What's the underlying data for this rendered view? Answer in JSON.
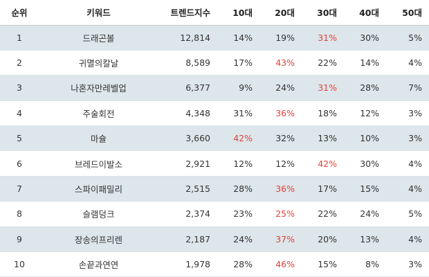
{
  "table": {
    "headers": [
      "순위",
      "키워드",
      "트렌드지수",
      "10대",
      "20대",
      "30대",
      "40대",
      "50대"
    ],
    "rows": [
      {
        "rank": "1",
        "keyword": "드래곤볼",
        "trend": "12,814",
        "ages": [
          "14%",
          "19%",
          "31%",
          "30%",
          "5%"
        ],
        "highlight": 2
      },
      {
        "rank": "2",
        "keyword": "귀멸의칼날",
        "trend": "8,589",
        "ages": [
          "17%",
          "43%",
          "22%",
          "14%",
          "4%"
        ],
        "highlight": 1
      },
      {
        "rank": "3",
        "keyword": "나혼자만레벨업",
        "trend": "6,377",
        "ages": [
          "9%",
          "24%",
          "31%",
          "28%",
          "7%"
        ],
        "highlight": 2
      },
      {
        "rank": "4",
        "keyword": "주술회전",
        "trend": "4,348",
        "ages": [
          "31%",
          "36%",
          "18%",
          "12%",
          "3%"
        ],
        "highlight": 1
      },
      {
        "rank": "5",
        "keyword": "마슐",
        "trend": "3,660",
        "ages": [
          "42%",
          "32%",
          "13%",
          "10%",
          "3%"
        ],
        "highlight": 0
      },
      {
        "rank": "6",
        "keyword": "브레드이발소",
        "trend": "2,921",
        "ages": [
          "12%",
          "12%",
          "42%",
          "30%",
          "4%"
        ],
        "highlight": 2
      },
      {
        "rank": "7",
        "keyword": "스파이패밀리",
        "trend": "2,515",
        "ages": [
          "28%",
          "36%",
          "17%",
          "15%",
          "4%"
        ],
        "highlight": 1
      },
      {
        "rank": "8",
        "keyword": "슬램덩크",
        "trend": "2,374",
        "ages": [
          "23%",
          "25%",
          "22%",
          "24%",
          "5%"
        ],
        "highlight": 1
      },
      {
        "rank": "9",
        "keyword": "장송의프리렌",
        "trend": "2,187",
        "ages": [
          "24%",
          "37%",
          "20%",
          "13%",
          "4%"
        ],
        "highlight": 1
      },
      {
        "rank": "10",
        "keyword": "손끝과연연",
        "trend": "1,978",
        "ages": [
          "28%",
          "46%",
          "15%",
          "8%",
          "3%"
        ],
        "highlight": 1
      }
    ]
  },
  "colors": {
    "stripe": "#dde6ea",
    "highlight_text": "#e2423b"
  }
}
